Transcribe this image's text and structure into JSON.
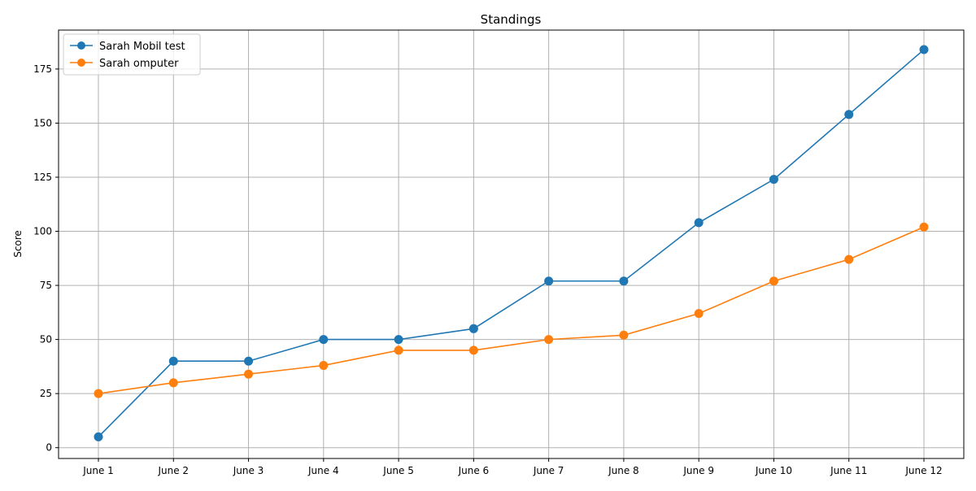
{
  "chart_data": {
    "type": "line",
    "title": "Standings",
    "xlabel": "",
    "ylabel": "Score",
    "categories": [
      "June 1",
      "June 2",
      "June 3",
      "June 4",
      "June 5",
      "June 6",
      "June 7",
      "June 8",
      "June 9",
      "June 10",
      "June 11",
      "June 12"
    ],
    "ylim": [
      -5,
      193
    ],
    "yticks": [
      0,
      25,
      50,
      75,
      100,
      125,
      150,
      175
    ],
    "grid": true,
    "legend": "top-left",
    "series": [
      {
        "name": "Sarah Mobil test",
        "color": "#1f77b4",
        "marker": "circle",
        "values": [
          5,
          40,
          40,
          50,
          50,
          55,
          77,
          77,
          104,
          124,
          154,
          184
        ]
      },
      {
        "name": "Sarah omputer",
        "color": "#ff7f0e",
        "marker": "circle",
        "values": [
          25,
          30,
          34,
          38,
          45,
          45,
          50,
          52,
          62,
          77,
          87,
          102
        ]
      }
    ]
  }
}
